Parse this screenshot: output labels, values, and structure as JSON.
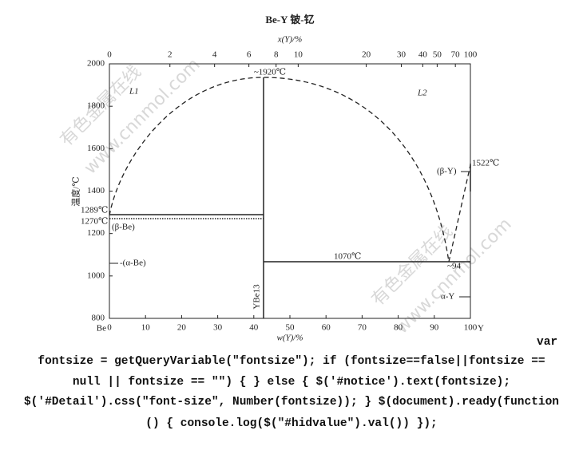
{
  "title": "Be-Y  铍-钇",
  "top_axis": {
    "label": "x(Y)/%",
    "ticks": [
      0,
      2,
      4,
      6,
      8,
      10,
      20,
      30,
      40,
      50,
      70,
      100
    ]
  },
  "bottom_axis": {
    "label": "w(Y)/%",
    "ticks": [
      0,
      10,
      20,
      30,
      40,
      50,
      60,
      70,
      80,
      90,
      100
    ]
  },
  "left_axis": {
    "label": "温度/℃",
    "ticks": [
      800,
      1000,
      1200,
      1400,
      1600,
      1800,
      2000
    ]
  },
  "annotations": [
    "~1920℃",
    "L1",
    "L2",
    "1289℃",
    "1270℃",
    "(β-Be)",
    "-(α-Be)",
    "YBe13",
    "1070℃",
    "~94",
    "(β-Y)",
    "1522℃",
    "α-Y",
    "Be",
    "Y"
  ],
  "watermark": [
    "有色金属在线",
    "www.cnnmol.com"
  ],
  "code_text": [
    "var",
    "fontsize = getQueryVariable(\"fontsize\"); if (fontsize==false||fontsize ==",
    "null || fontsize == \"\") { } else { $('#notice').text(fontsize);",
    "$('#Detail').css(\"font-size\", Number(fontsize)); } $(document).ready(function",
    "() { console.log($(\"#hidvalue\").val()) });"
  ]
}
